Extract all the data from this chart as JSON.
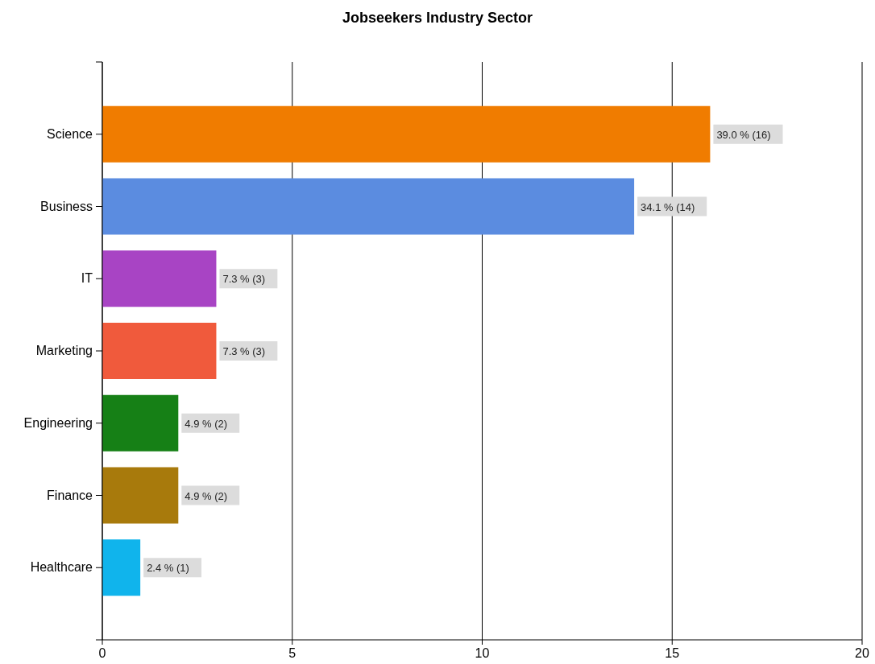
{
  "chart_data": {
    "type": "bar",
    "orientation": "horizontal",
    "title": "Jobseekers Industry Sector",
    "categories": [
      "Science",
      "Business",
      "IT",
      "Marketing",
      "Engineering",
      "Finance",
      "Healthcare"
    ],
    "values": [
      16,
      14,
      3,
      3,
      2,
      2,
      1
    ],
    "colors": [
      "#f07c00",
      "#5b8ce0",
      "#a844c4",
      "#f05a3c",
      "#168016",
      "#a87a0c",
      "#10b4ec"
    ],
    "value_labels": [
      "39.0 % (16)",
      "34.1 % (14)",
      "7.3 % (3)",
      "7.3 % (3)",
      "4.9 % (2)",
      "4.9 % (2)",
      "2.4 % (1)"
    ],
    "xlim": [
      0,
      20
    ],
    "xticks": [
      0,
      5,
      10,
      15,
      20
    ],
    "grid": "x"
  }
}
